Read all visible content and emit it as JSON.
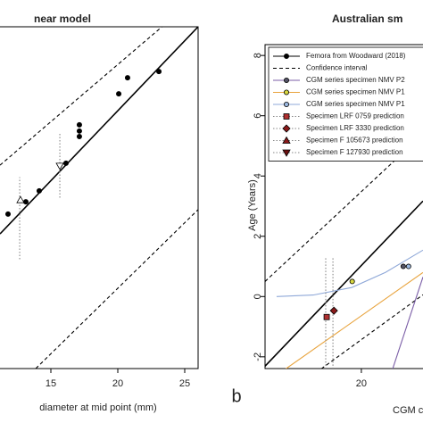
{
  "chart_data": [
    {
      "type": "line",
      "title": "near model",
      "xlabel": "diameter at mid point (mm)",
      "xlim": [
        11.2,
        26
      ],
      "ylim": [
        0,
        10
      ],
      "xticks": [
        15,
        20,
        25
      ],
      "series": [
        {
          "color": "#000000",
          "style": "solid",
          "line_x": [
            11.2,
            26
          ],
          "line_values": [
            3.94,
            10
          ]
        },
        {
          "color": "#000000",
          "style": "dashed",
          "line_x": [
            11.2,
            23.3
          ],
          "line_values": [
            5.95,
            10
          ]
        },
        {
          "color": "#000000",
          "style": "dashed",
          "line_x": [
            13.87,
            26
          ],
          "line_values": [
            0,
            4.65
          ]
        },
        {
          "color": "#888888",
          "style": "dotted",
          "line_x": [
            12.67,
            12.67
          ],
          "line_values": [
            3.2,
            5.6
          ]
        },
        {
          "color": "#888888",
          "style": "dotted",
          "line_x": [
            15.67,
            15.67
          ],
          "line_values": [
            5.0,
            6.9
          ]
        },
        {
          "marker": "circle",
          "marker_fill": "#000000",
          "x": [
            23.07,
            20.73,
            20.07,
            17.13,
            17.13,
            17.13,
            16.13,
            14.13,
            13.13,
            11.8
          ],
          "values": [
            8.69,
            8.51,
            8.04,
            7.13,
            6.95,
            6.79,
            6.01,
            5.2,
            4.88,
            4.52
          ]
        },
        {
          "marker": "triangle-up",
          "marker_fill": "#ffffff",
          "x": [
            12.73
          ],
          "values": [
            4.93
          ]
        },
        {
          "marker": "triangle-down",
          "marker_fill": "#ffffff",
          "x": [
            15.67
          ],
          "values": [
            5.93
          ]
        }
      ]
    },
    {
      "type": "line",
      "title": "Australian sm",
      "panel_label": "b",
      "xlabel": "CGM ci",
      "ylabel": "Age (Years)",
      "xlim": [
        0,
        32.8
      ],
      "ylim": [
        -2.39,
        8.36
      ],
      "xticks": [
        20
      ],
      "yticks": [
        -2,
        0,
        2,
        4,
        6,
        8
      ],
      "series": [
        {
          "name": "Femora from Woodward (2018)",
          "color": "#000000",
          "style": "solid",
          "marker": "circle",
          "marker_fill": "#000000",
          "line_x": [
            0,
            32.8
          ],
          "line_values": [
            -2.31,
            3.17
          ]
        },
        {
          "name": "Confidence interval",
          "color": "#000000",
          "style": "dashed",
          "line_x": [
            0,
            32.8
          ],
          "line_values": [
            0.5,
            5.39
          ]
        },
        {
          "color": "#000000",
          "style": "dashed",
          "line_x": [
            11.67,
            32.8
          ],
          "line_values": [
            -2.4,
            0.06
          ]
        },
        {
          "name": "CGM series specimen NMV P2",
          "color": "#7b5ea7",
          "style": "solid",
          "marker": "circle",
          "marker_fill": "#555566",
          "line_x": [
            26.5,
            32.8
          ],
          "line_values": [
            -2.4,
            0.65
          ],
          "x": [
            28.7
          ],
          "values": [
            1.0
          ]
        },
        {
          "name": "CGM series specimen NMV P1",
          "color": "#e8a33c",
          "style": "solid",
          "marker": "circle",
          "marker_fill": "#d8d840",
          "line_x": [
            4.3,
            32.8
          ],
          "line_values": [
            -2.4,
            0.8
          ],
          "x": [
            18.1
          ],
          "values": [
            0.5
          ]
        },
        {
          "name": "CGM series specimen NMV P1",
          "color": "#8fa8d8",
          "style": "solid",
          "marker": "circle",
          "marker_fill": "#9bb8e0",
          "line_x": [
            2.4,
            10,
            18,
            25,
            32.8
          ],
          "line_values": [
            0,
            0.05,
            0.3,
            0.8,
            1.54
          ],
          "x": [
            29.8
          ],
          "values": [
            1.0
          ]
        },
        {
          "name": "Specimen LRF 0759 prediction",
          "color": "#888888",
          "style": "dotted",
          "marker": "square",
          "marker_fill": "#b03030",
          "line_x": [
            12.6,
            12.6
          ],
          "line_values": [
            -2.4,
            1.33
          ],
          "x": [
            12.8
          ],
          "values": [
            -0.68
          ]
        },
        {
          "name": "Specimen LRF 3330 prediction",
          "color": "#888888",
          "style": "dotted",
          "marker": "diamond",
          "marker_fill": "#8b1a1a",
          "line_x": [
            14.1,
            14.1
          ],
          "line_values": [
            -2.4,
            1.33
          ],
          "x": [
            14.3
          ],
          "values": [
            -0.47
          ]
        },
        {
          "name": "Specimen F 105673 prediction",
          "color": "#888888",
          "style": "dotted",
          "marker": "triangle-up",
          "marker_fill": "#8b1a1a",
          "x": [],
          "values": []
        },
        {
          "name": "Specimen F 127930 prediction",
          "color": "#888888",
          "style": "dotted",
          "marker": "triangle-down",
          "marker_fill": "#6b1010",
          "x": [],
          "values": []
        }
      ]
    }
  ]
}
